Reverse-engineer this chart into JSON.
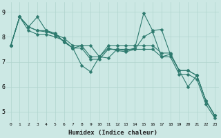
{
  "xlabel": "Humidex (Indice chaleur)",
  "bg_color": "#cce8e4",
  "grid_color": "#b0d4ce",
  "line_color": "#2d7a6e",
  "xlim": [
    -0.5,
    23.5
  ],
  "ylim": [
    4.6,
    9.4
  ],
  "yticks": [
    5,
    6,
    7,
    8,
    9
  ],
  "xticks": [
    0,
    1,
    2,
    3,
    4,
    5,
    6,
    7,
    8,
    9,
    10,
    11,
    12,
    13,
    14,
    15,
    16,
    17,
    18,
    19,
    20,
    21,
    22,
    23
  ],
  "lines": [
    [
      7.65,
      8.8,
      8.4,
      8.8,
      8.25,
      8.15,
      7.8,
      7.55,
      6.85,
      6.6,
      7.2,
      7.15,
      7.5,
      7.45,
      7.55,
      8.95,
      8.25,
      8.3,
      7.3,
      6.65,
      6.0,
      6.45,
      5.45,
      4.85
    ],
    [
      7.65,
      8.8,
      8.4,
      8.25,
      8.2,
      8.1,
      7.8,
      7.55,
      7.65,
      7.65,
      7.2,
      7.55,
      7.45,
      7.4,
      7.5,
      8.0,
      8.2,
      7.2,
      7.3,
      6.65,
      6.65,
      6.45,
      5.45,
      4.85
    ],
    [
      7.65,
      8.8,
      8.4,
      8.25,
      8.25,
      8.1,
      7.95,
      7.65,
      7.65,
      7.2,
      7.2,
      7.65,
      7.65,
      7.65,
      7.65,
      7.65,
      7.65,
      7.35,
      7.35,
      6.65,
      6.65,
      6.45,
      5.45,
      4.85
    ],
    [
      7.65,
      8.8,
      8.25,
      8.1,
      8.1,
      8.0,
      7.85,
      7.55,
      7.55,
      7.1,
      7.1,
      7.5,
      7.5,
      7.5,
      7.5,
      7.5,
      7.5,
      7.2,
      7.2,
      6.5,
      6.5,
      6.3,
      5.3,
      4.75
    ]
  ],
  "marker_size": 2.5,
  "line_width": 0.8
}
